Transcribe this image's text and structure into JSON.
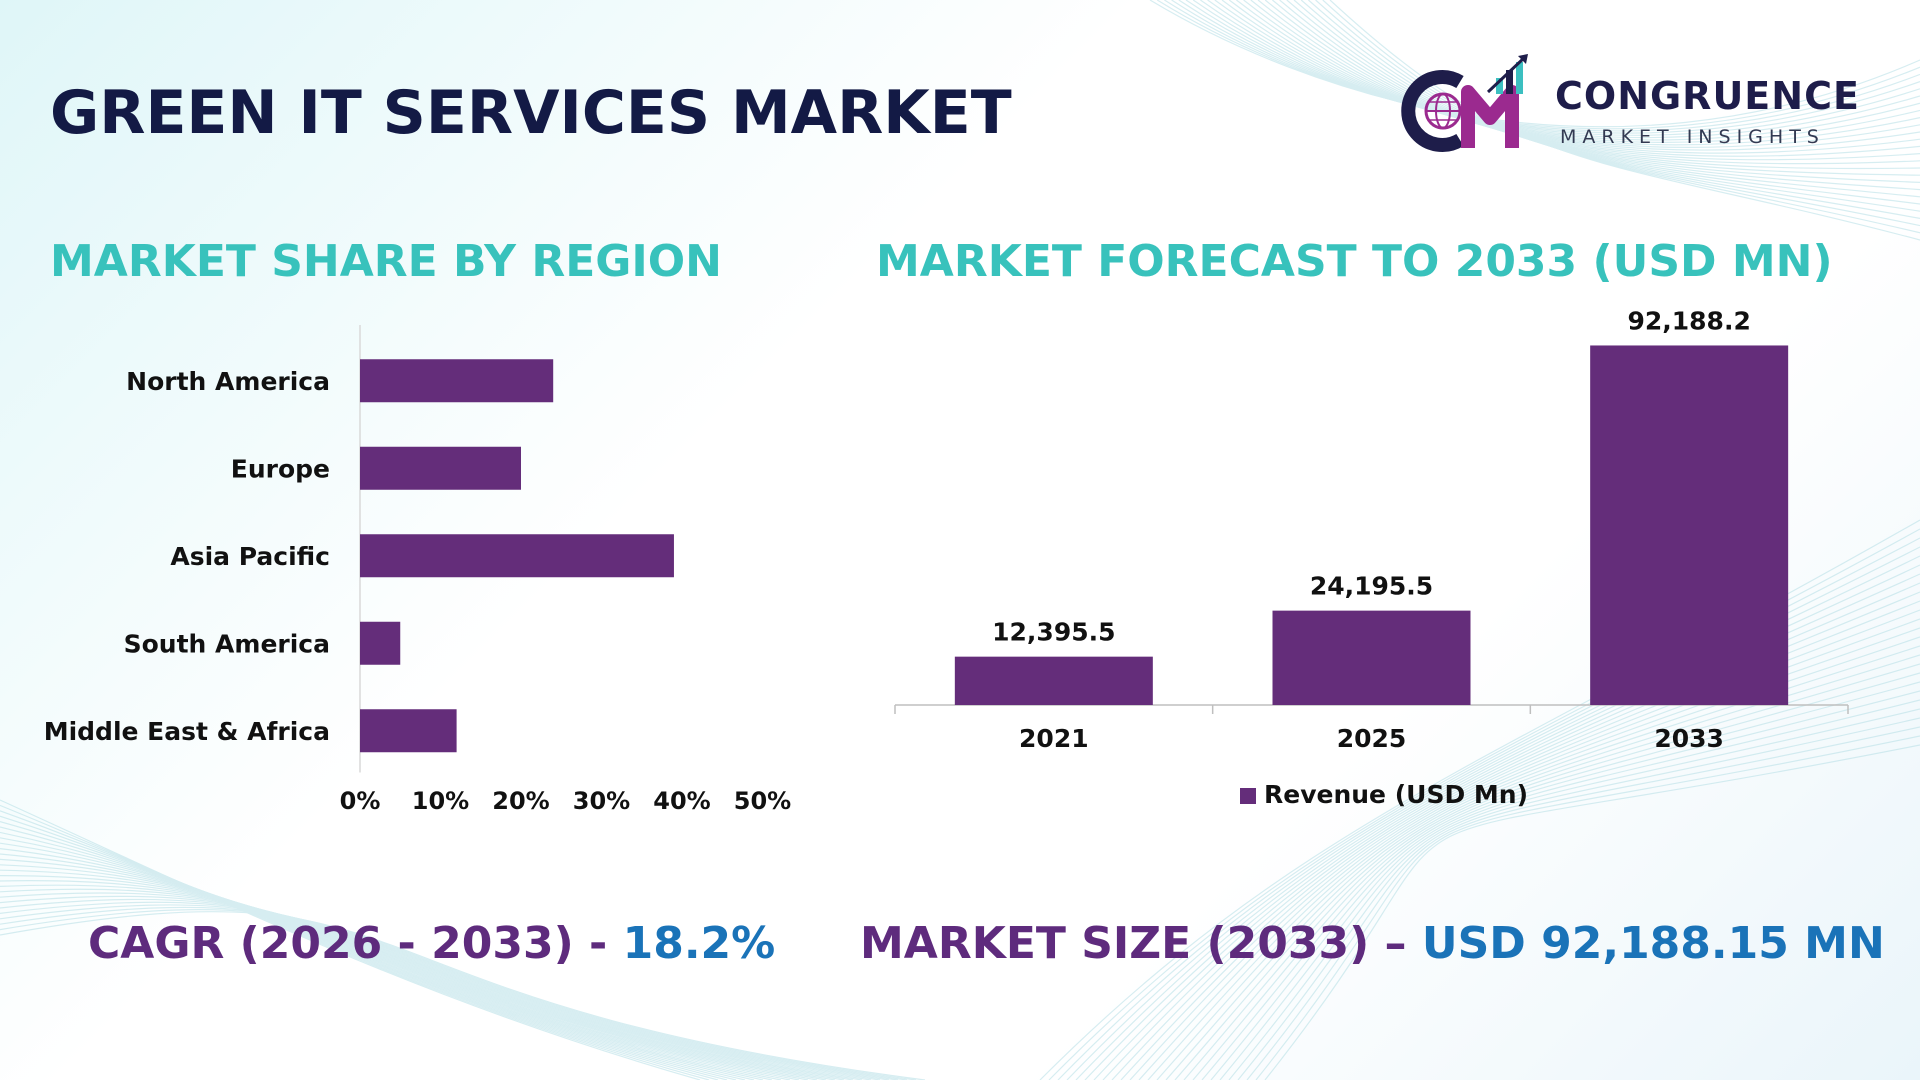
{
  "title": "GREEN IT SERVICES MARKET",
  "logo": {
    "name": "CONGRUENCE",
    "tagline": "MARKET INSIGHTS",
    "icon": "cm-globe-chart-icon",
    "colors": {
      "dark": "#1e1d4a",
      "accent": "#9b2a8f",
      "teal": "#3bbfc0"
    }
  },
  "colors": {
    "title": "#131a45",
    "section_title": "#38c2bc",
    "bar": "#642d7a",
    "stat_label": "#5e2b7d",
    "stat_value": "#1a73b8"
  },
  "chart_data": [
    {
      "type": "bar",
      "orientation": "horizontal",
      "title": "MARKET SHARE BY REGION",
      "categories": [
        "North America",
        "Europe",
        "Asia Pacific",
        "South America",
        "Middle East & Africa"
      ],
      "values": [
        24,
        20,
        39,
        5,
        12
      ],
      "unit": "%",
      "xlim": [
        0,
        50
      ],
      "xticks": [
        "0%",
        "10%",
        "20%",
        "30%",
        "40%",
        "50%"
      ],
      "grid": false,
      "legend": "none"
    },
    {
      "type": "bar",
      "title": "MARKET FORECAST TO 2033 (USD MN)",
      "categories": [
        "2021",
        "2025",
        "2033"
      ],
      "series": [
        {
          "name": "Revenue (USD Mn)",
          "values": [
            12395.5,
            24195.5,
            92188.2
          ]
        }
      ],
      "data_labels": [
        "12,395.5",
        "24,195.5",
        "92,188.2"
      ],
      "ylim": [
        0,
        100000
      ],
      "grid": false,
      "legend": "bottom"
    }
  ],
  "stats": {
    "cagr_label": "CAGR (2026 - 2033) - ",
    "cagr_value": "18.2%",
    "size_label": "MARKET SIZE (2033) – ",
    "size_value": "USD 92,188.15 MN"
  }
}
